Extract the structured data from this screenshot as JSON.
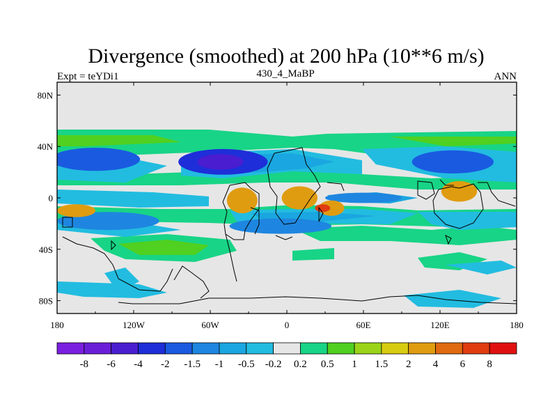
{
  "chart_data": {
    "type": "heatmap",
    "title": "Divergence (smoothed) at 200 hPa (10**6 m/s)",
    "left_string": "Expt = teYDi1",
    "center_string": "430_4_MaBP",
    "right_string": "ANN",
    "x_ticks": [
      "180",
      "120W",
      "60W",
      "0",
      "60E",
      "120E",
      "180"
    ],
    "x_tick_values": [
      -180,
      -120,
      -60,
      0,
      60,
      120,
      180
    ],
    "y_ticks": [
      "80N",
      "40N",
      "0",
      "40S",
      "80S"
    ],
    "y_tick_values": [
      80,
      40,
      0,
      -40,
      -80
    ],
    "xlim": [
      -180,
      180
    ],
    "ylim": [
      -90,
      90
    ],
    "colorbar": {
      "labels": [
        "-8",
        "-6",
        "-4",
        "-2",
        "-1.5",
        "-1",
        "-0.5",
        "-0.2",
        "0.2",
        "0.5",
        "1",
        "1.5",
        "2",
        "4",
        "6",
        "8"
      ],
      "levels": [
        -8,
        -6,
        -4,
        -2,
        -1.5,
        -1,
        -0.5,
        -0.2,
        0.2,
        0.5,
        1,
        1.5,
        2,
        4,
        6,
        8
      ],
      "colors": [
        "#7a1fe0",
        "#6a1ed8",
        "#4a1dd0",
        "#1e2ed8",
        "#1a5ae0",
        "#1e86e0",
        "#1aa6e0",
        "#22bce0",
        "#e6e6e6",
        "#18d486",
        "#50d020",
        "#9ad418",
        "#d8cc10",
        "#e09c10",
        "#e06a10",
        "#e03c10",
        "#e01010"
      ]
    },
    "features": [
      {
        "name": "blue-40n-atlantic",
        "lon": -50,
        "lat": 28,
        "rx": 35,
        "ry": 10,
        "level": 3
      },
      {
        "name": "blue-40n-atlantic-core",
        "lon": -52,
        "lat": 28,
        "rx": 18,
        "ry": 6,
        "level": 2
      },
      {
        "name": "blue-30n-pacific",
        "lon": -150,
        "lat": 30,
        "rx": 35,
        "ry": 9,
        "level": 4
      },
      {
        "name": "blue-30n-asia",
        "lon": 130,
        "lat": 28,
        "rx": 32,
        "ry": 9,
        "level": 4
      },
      {
        "name": "blue-15s-pacific",
        "lon": -140,
        "lat": -18,
        "rx": 40,
        "ry": 7,
        "level": 5
      },
      {
        "name": "blue-20s-atlantic",
        "lon": -5,
        "lat": -22,
        "rx": 40,
        "ry": 6,
        "level": 5
      },
      {
        "name": "blue-eq-indian",
        "lon": 60,
        "lat": 0,
        "rx": 30,
        "ry": 4,
        "level": 5
      },
      {
        "name": "orange-eq-africa",
        "lon": -35,
        "lat": -2,
        "rx": 12,
        "ry": 10,
        "level": 13
      },
      {
        "name": "orange-eq-africa2",
        "lon": 10,
        "lat": 0,
        "rx": 14,
        "ry": 9,
        "level": 13
      },
      {
        "name": "orange-eq-india",
        "lon": 35,
        "lat": -8,
        "rx": 10,
        "ry": 6,
        "level": 13
      },
      {
        "name": "orange-eq-maritime",
        "lon": 135,
        "lat": 5,
        "rx": 14,
        "ry": 8,
        "level": 13
      },
      {
        "name": "orange-eq-pacific-w",
        "lon": -165,
        "lat": -10,
        "rx": 15,
        "ry": 5,
        "level": 13
      },
      {
        "name": "red-eq-indian",
        "lon": 28,
        "lat": -8,
        "rx": 6,
        "ry": 3,
        "level": 15
      }
    ]
  }
}
